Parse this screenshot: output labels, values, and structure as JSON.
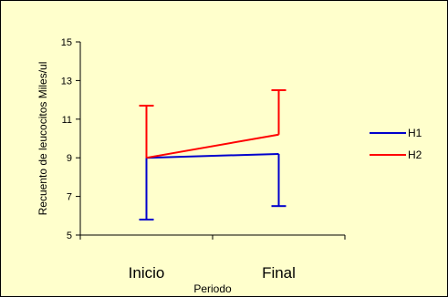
{
  "chart_data": {
    "type": "line",
    "title": "",
    "xlabel": "Periodo",
    "ylabel": "Recuento de  leucocitos  Miles/ul",
    "categories": [
      "Inicio",
      "Final"
    ],
    "ylim": [
      5,
      15
    ],
    "yticks": [
      5,
      7,
      9,
      11,
      13,
      15
    ],
    "grid": false,
    "legend_position": "right",
    "series": [
      {
        "name": "H1",
        "color": "#0000cc",
        "values": [
          9.0,
          9.2
        ],
        "error_low": [
          5.8,
          6.5
        ],
        "error_high": [
          9.0,
          9.2
        ]
      },
      {
        "name": "H2",
        "color": "#ff0000",
        "values": [
          9.0,
          10.2
        ],
        "error_low": [
          9.0,
          10.2
        ],
        "error_high": [
          11.7,
          12.5
        ]
      }
    ]
  }
}
